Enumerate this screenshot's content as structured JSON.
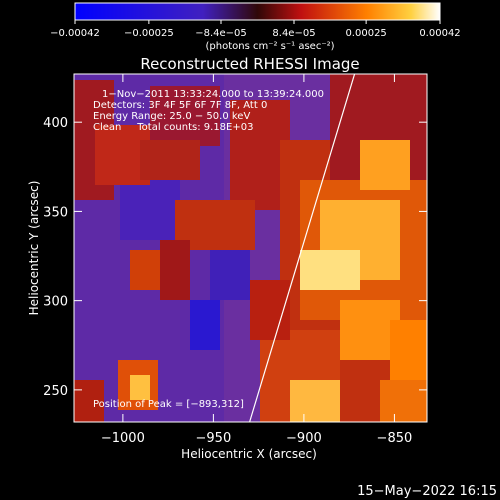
{
  "chart_data": {
    "type": "heatmap",
    "title": "Reconstructed RHESSI Image",
    "xlabel": "Heliocentric X (arcsec)",
    "ylabel": "Heliocentric Y (arcsec)",
    "xlim": [
      -1027,
      -832
    ],
    "ylim": [
      232,
      427
    ],
    "x_ticks": [
      {
        "value": -1000,
        "label": "−1000"
      },
      {
        "value": -950,
        "label": "−950"
      },
      {
        "value": -900,
        "label": "−900"
      },
      {
        "value": -850,
        "label": "−850"
      }
    ],
    "y_ticks": [
      {
        "value": 250,
        "label": "250"
      },
      {
        "value": 300,
        "label": "300"
      },
      {
        "value": 350,
        "label": "350"
      },
      {
        "value": 400,
        "label": "400"
      }
    ],
    "colorbar": {
      "range": [
        -0.00042,
        0.00042
      ],
      "ticks": [
        {
          "value": -0.00042,
          "label": "−0.00042"
        },
        {
          "value": -0.00025,
          "label": "−0.00025"
        },
        {
          "value": -8.4e-05,
          "label": "−8.4e−05"
        },
        {
          "value": 8.4e-05,
          "label": "8.4e−05"
        },
        {
          "value": 0.00025,
          "label": "0.00025"
        },
        {
          "value": 0.00042,
          "label": "0.00042"
        }
      ],
      "units": "(photons cm⁻² s⁻¹ asec⁻²)"
    },
    "annotations": [
      "1−Nov−2011 13:33:24.000 to 13:39:24.000",
      "Detectors: 3F 4F 5F 6F 7F 8F, Att 0",
      "Energy Range: 25.0 − 50.0 keV",
      "Clean     Total counts: 9.18E+03"
    ],
    "peak_label": "Position of Peak = [−893,312]",
    "limb_line": {
      "from": [
        -930,
        232
      ],
      "to": [
        -872,
        427
      ]
    },
    "grid": false
  },
  "footer_date": "15−May−2022 16:15",
  "colors": {
    "background": "#000000",
    "foreground": "#ffffff",
    "colormap": [
      "#0000ff",
      "#5a32b4",
      "#7a3aa8",
      "#b02010",
      "#ff3000",
      "#ffa000",
      "#ffffff"
    ]
  }
}
